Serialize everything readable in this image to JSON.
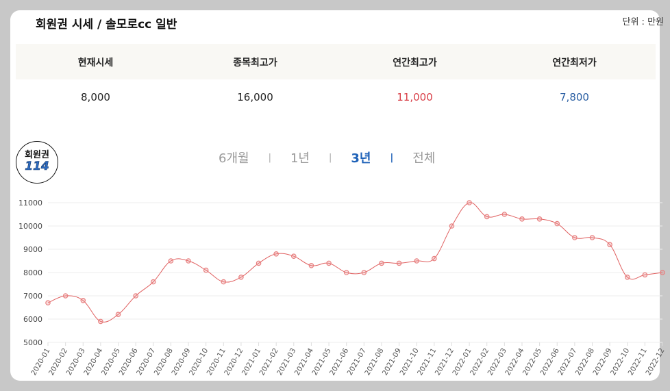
{
  "header": {
    "title": "회원권 시세 / 솔모로cc 일반",
    "unit": "단위 : 만원"
  },
  "stats": [
    {
      "label": "현재시세",
      "value": "8,000",
      "tone": "normal"
    },
    {
      "label": "종목최고가",
      "value": "16,000",
      "tone": "normal"
    },
    {
      "label": "연간최고가",
      "value": "11,000",
      "tone": "red"
    },
    {
      "label": "연간최저가",
      "value": "7,800",
      "tone": "blue"
    }
  ],
  "badge": {
    "line1": "회원권",
    "line2": "114"
  },
  "tabs": [
    {
      "label": "6개월",
      "active": false
    },
    {
      "label": "1년",
      "active": false
    },
    {
      "label": "3년",
      "active": true
    },
    {
      "label": "전체",
      "active": false
    }
  ],
  "colors": {
    "line": "#e06060",
    "point": "#e88080",
    "grid": "#eeeeee",
    "accent": "#1f62b8"
  },
  "chart_data": {
    "type": "line",
    "categories": [
      "2020-01",
      "2020-02",
      "2020-03",
      "2020-04",
      "2020-05",
      "2020-06",
      "2020-07",
      "2020-08",
      "2020-09",
      "2020-10",
      "2020-11",
      "2020-12",
      "2021-01",
      "2021-02",
      "2021-03",
      "2021-04",
      "2021-05",
      "2021-06",
      "2021-07",
      "2021-08",
      "2021-09",
      "2021-10",
      "2021-11",
      "2021-12",
      "2022-01",
      "2022-02",
      "2022-03",
      "2022-04",
      "2022-05",
      "2022-06",
      "2022-07",
      "2022-08",
      "2022-09",
      "2022-10",
      "2022-11",
      "2022-12"
    ],
    "values": [
      6700,
      7000,
      6800,
      5900,
      6200,
      7000,
      7600,
      8500,
      8500,
      8100,
      7600,
      7800,
      8400,
      8800,
      8700,
      8300,
      8400,
      8000,
      8000,
      8400,
      8400,
      8500,
      8600,
      10000,
      11000,
      10400,
      10500,
      10300,
      10300,
      10100,
      9500,
      9500,
      9200,
      7800,
      7900,
      8000
    ],
    "ylim": [
      5000,
      11000
    ],
    "yticks": [
      5000,
      6000,
      7000,
      8000,
      9000,
      10000,
      11000
    ],
    "grid": true,
    "legend": "none"
  }
}
